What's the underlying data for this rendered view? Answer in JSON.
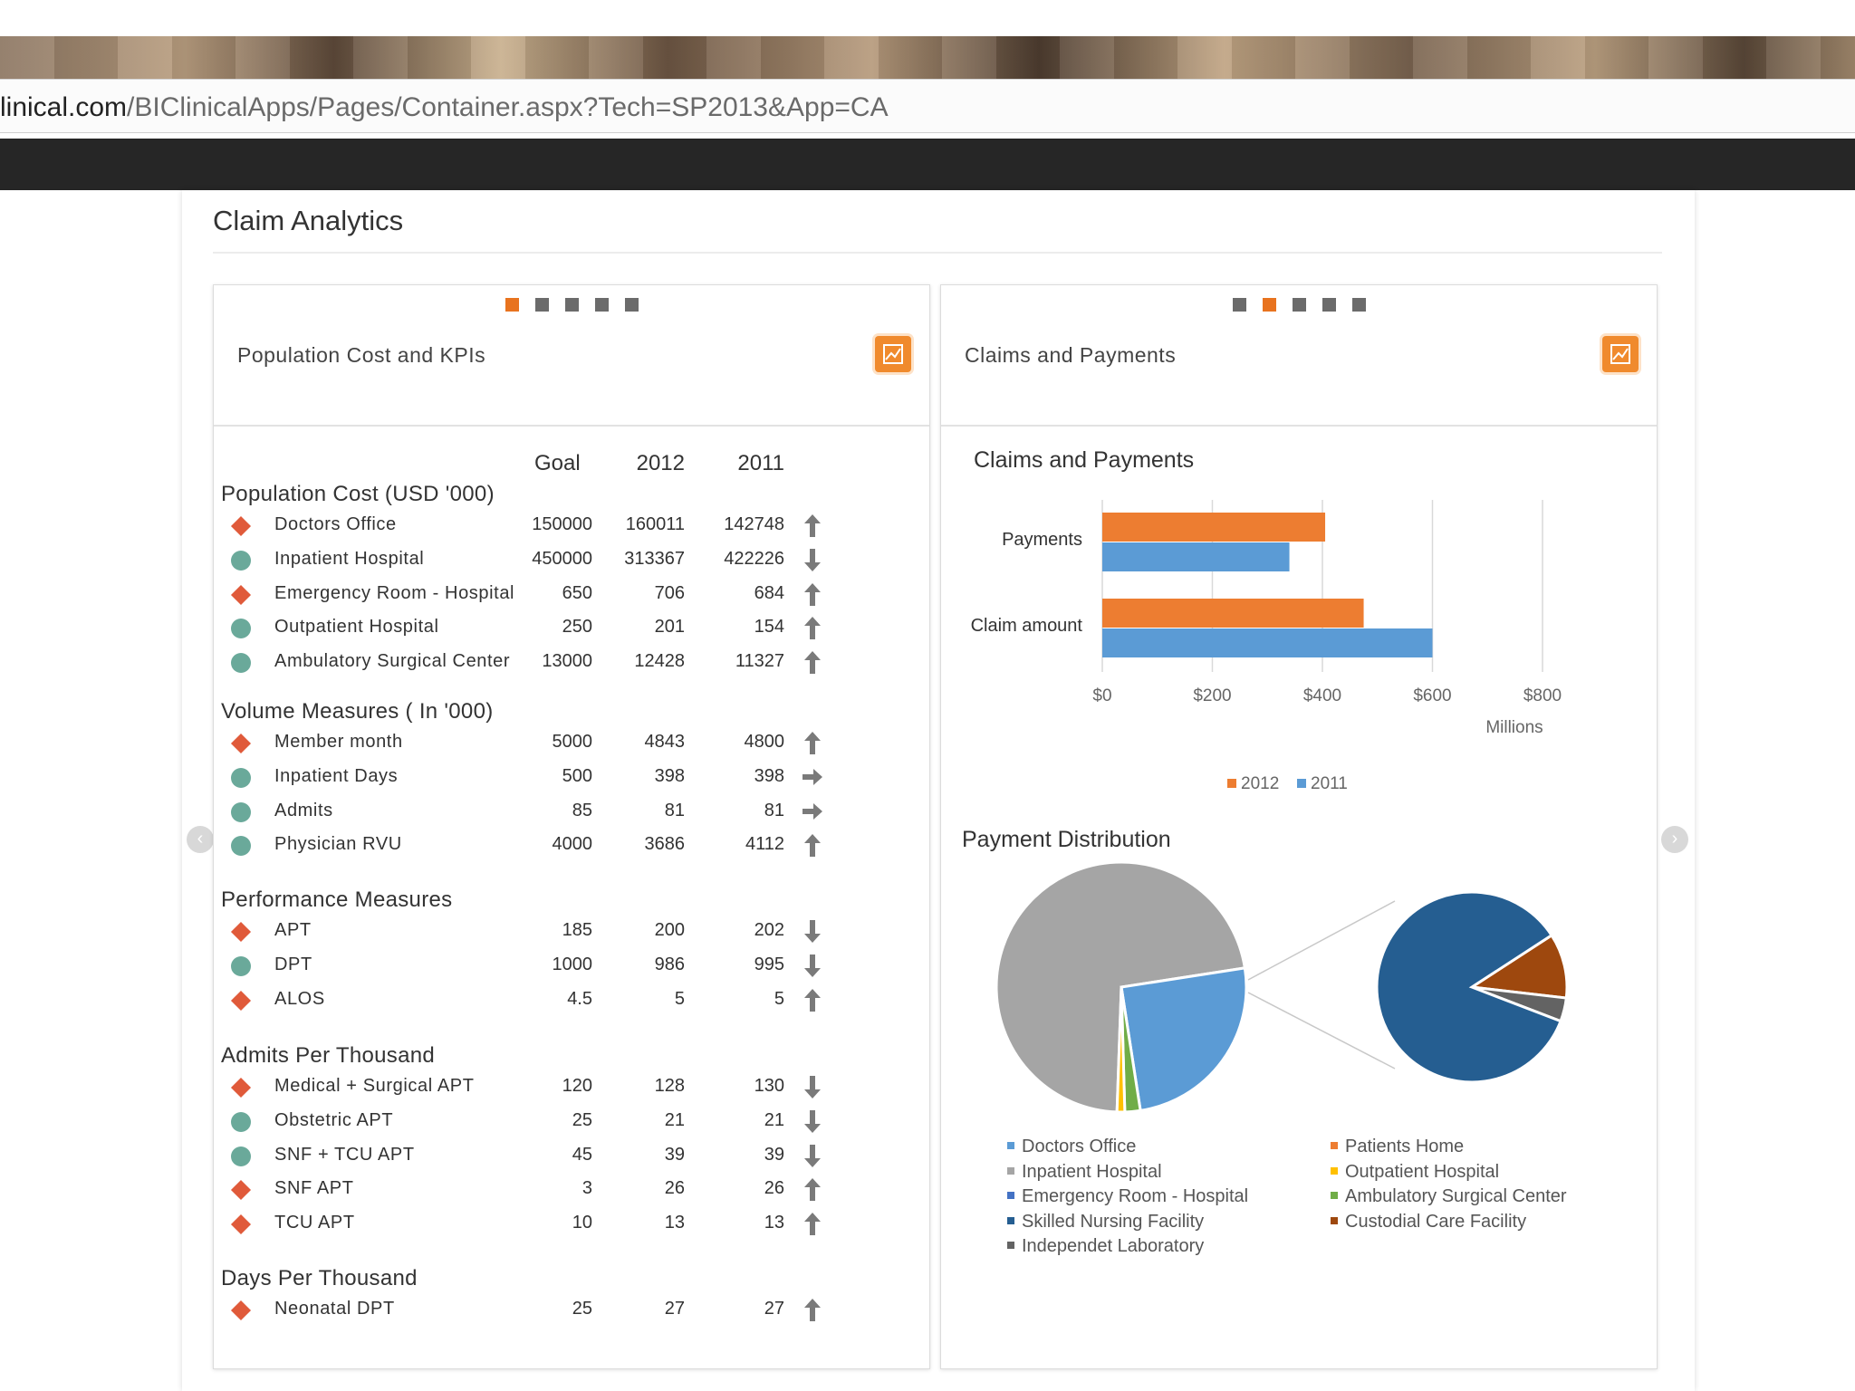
{
  "browser": {
    "url_host": "linical.com",
    "url_path": "/BIClinicalApps/Pages/Container.aspx?Tech=SP2013&App=CA"
  },
  "page": {
    "title": "Claim Analytics"
  },
  "left_panel": {
    "title": "Population Cost and KPIs",
    "columns": [
      "Goal",
      "2012",
      "2011"
    ],
    "colors": {
      "diamond": "#e05a3a",
      "circle": "#6aa99a",
      "accent": "#e8731f"
    },
    "sections": [
      {
        "title": "Population Cost (USD '000)",
        "rows": [
          {
            "label": "Doctors Office",
            "goal": "150000",
            "y2012": "160011",
            "y2011": "142748",
            "marker": "diamond",
            "trend": "up"
          },
          {
            "label": "Inpatient Hospital",
            "goal": "450000",
            "y2012": "313367",
            "y2011": "422226",
            "marker": "circle",
            "trend": "down"
          },
          {
            "label": "Emergency Room - Hospital",
            "goal": "650",
            "y2012": "706",
            "y2011": "684",
            "marker": "diamond",
            "trend": "up"
          },
          {
            "label": "Outpatient Hospital",
            "goal": "250",
            "y2012": "201",
            "y2011": "154",
            "marker": "circle",
            "trend": "up"
          },
          {
            "label": "Ambulatory Surgical Center",
            "goal": "13000",
            "y2012": "12428",
            "y2011": "11327",
            "marker": "circle",
            "trend": "up"
          }
        ]
      },
      {
        "title": "Volume Measures ( In '000)",
        "rows": [
          {
            "label": "Member month",
            "goal": "5000",
            "y2012": "4843",
            "y2011": "4800",
            "marker": "diamond",
            "trend": "up"
          },
          {
            "label": "Inpatient Days",
            "goal": "500",
            "y2012": "398",
            "y2011": "398",
            "marker": "circle",
            "trend": "right"
          },
          {
            "label": "Admits",
            "goal": "85",
            "y2012": "81",
            "y2011": "81",
            "marker": "circle",
            "trend": "right"
          },
          {
            "label": "Physician RVU",
            "goal": "4000",
            "y2012": "3686",
            "y2011": "4112",
            "marker": "circle",
            "trend": "up"
          }
        ]
      },
      {
        "title": "Performance Measures",
        "rows": [
          {
            "label": "APT",
            "goal": "185",
            "y2012": "200",
            "y2011": "202",
            "marker": "diamond",
            "trend": "down"
          },
          {
            "label": "DPT",
            "goal": "1000",
            "y2012": "986",
            "y2011": "995",
            "marker": "circle",
            "trend": "down"
          },
          {
            "label": "ALOS",
            "goal": "4.5",
            "y2012": "5",
            "y2011": "5",
            "marker": "diamond",
            "trend": "up"
          }
        ]
      },
      {
        "title": "Admits Per Thousand",
        "rows": [
          {
            "label": "Medical + Surgical APT",
            "goal": "120",
            "y2012": "128",
            "y2011": "130",
            "marker": "diamond",
            "trend": "down"
          },
          {
            "label": "Obstetric APT",
            "goal": "25",
            "y2012": "21",
            "y2011": "21",
            "marker": "circle",
            "trend": "down"
          },
          {
            "label": "SNF + TCU APT",
            "goal": "45",
            "y2012": "39",
            "y2011": "39",
            "marker": "circle",
            "trend": "down"
          },
          {
            "label": "SNF APT",
            "goal": "3",
            "y2012": "26",
            "y2011": "26",
            "marker": "diamond",
            "trend": "up"
          },
          {
            "label": "TCU APT",
            "goal": "10",
            "y2012": "13",
            "y2011": "13",
            "marker": "diamond",
            "trend": "up"
          }
        ]
      },
      {
        "title": "Days Per Thousand",
        "rows": [
          {
            "label": "Neonatal DPT",
            "goal": "25",
            "y2012": "27",
            "y2011": "27",
            "marker": "diamond",
            "trend": "up"
          }
        ]
      }
    ]
  },
  "right_panel": {
    "title": "Claims and Payments",
    "bar_chart_title": "Claims and Payments",
    "pie_chart_title": "Payment Distribution",
    "axis_unit": "Millions",
    "pie_legend": [
      {
        "label": "Doctors Office",
        "color": "#5b9bd5"
      },
      {
        "label": "Inpatient Hospital",
        "color": "#a5a5a5"
      },
      {
        "label": "Emergency Room - Hospital",
        "color": "#4472c4"
      },
      {
        "label": "Skilled Nursing Facility",
        "color": "#255e91"
      },
      {
        "label": "Independet Laboratory",
        "color": "#636363"
      },
      {
        "label": "Patients Home",
        "color": "#ed7d31"
      },
      {
        "label": "Outpatient Hospital",
        "color": "#ffc000"
      },
      {
        "label": "Ambulatory Surgical Center",
        "color": "#70ad47"
      },
      {
        "label": "Custodial Care Facility",
        "color": "#9e480e"
      }
    ]
  },
  "chart_data": [
    {
      "type": "bar",
      "orientation": "horizontal",
      "title": "Claims and Payments",
      "categories": [
        "Payments",
        "Claim amount"
      ],
      "series": [
        {
          "name": "2012",
          "color": "#ed7d31",
          "values": [
            405,
            475
          ]
        },
        {
          "name": "2011",
          "color": "#5b9bd5",
          "values": [
            340,
            600
          ]
        }
      ],
      "xlabel": "Millions",
      "xlim": [
        0,
        800
      ],
      "xticks": [
        "$0",
        "$200",
        "$400",
        "$600",
        "$800"
      ],
      "grid": true,
      "legend": "bottom"
    },
    {
      "type": "pie",
      "title": "Payment Distribution",
      "main_slices": [
        {
          "name": "Inpatient Hospital",
          "value": 72,
          "color": "#a5a5a5"
        },
        {
          "name": "Doctors Office",
          "value": 25,
          "color": "#5b9bd5"
        },
        {
          "name": "Ambulatory Surgical Center",
          "value": 2,
          "color": "#70ad47"
        },
        {
          "name": "Outpatient Hospital",
          "value": 1,
          "color": "#ffc000"
        }
      ],
      "detail_slices": [
        {
          "name": "Skilled Nursing Facility",
          "value": 85,
          "color": "#255e91"
        },
        {
          "name": "Custodial Care Facility",
          "value": 11,
          "color": "#9e480e"
        },
        {
          "name": "Independet Laboratory",
          "value": 4,
          "color": "#636363"
        }
      ],
      "legend": "bottom"
    }
  ]
}
